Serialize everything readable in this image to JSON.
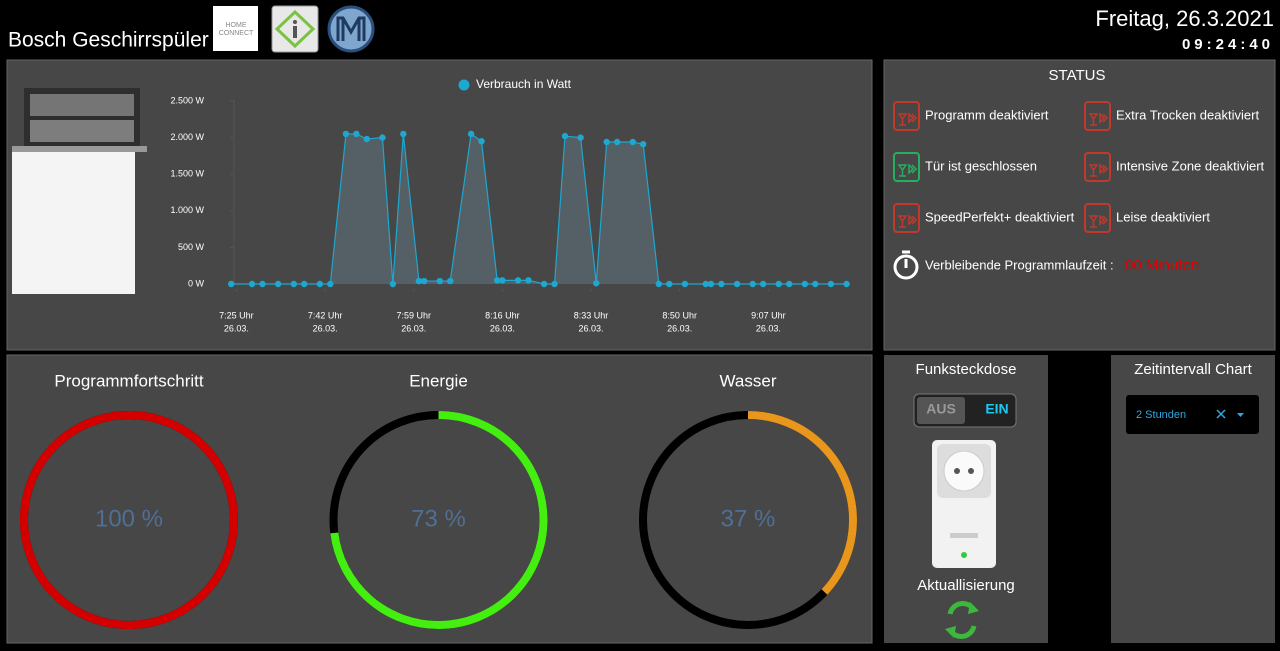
{
  "header": {
    "title": "Bosch Geschirrspüler",
    "logo_text": [
      "HOME",
      "CONNECT"
    ],
    "date": "Freitag, 26.3.2021",
    "time": "09:24:40"
  },
  "chart_data": {
    "type": "line",
    "series": [
      {
        "name": "Verbrauch in Watt",
        "color": "#1ea7cf",
        "x": [
          "07:24",
          "07:28",
          "07:30",
          "07:33",
          "07:36",
          "07:38",
          "07:41",
          "07:43",
          "07:46",
          "07:48",
          "07:50",
          "07:53",
          "07:55",
          "07:57",
          "08:00",
          "08:01",
          "08:04",
          "08:06",
          "08:10",
          "08:12",
          "08:15",
          "08:16",
          "08:19",
          "08:21",
          "08:24",
          "08:26",
          "08:28",
          "08:31",
          "08:34",
          "08:36",
          "08:38",
          "08:41",
          "08:43",
          "08:46",
          "08:48",
          "08:51",
          "08:55",
          "08:56",
          "08:58",
          "09:01",
          "09:04",
          "09:06",
          "09:09",
          "09:11",
          "09:14",
          "09:16",
          "09:19",
          "09:22"
        ],
        "values": [
          0,
          0,
          0,
          0,
          0,
          0,
          0,
          0,
          2050,
          2050,
          1980,
          2000,
          0,
          2050,
          40,
          40,
          40,
          40,
          2050,
          1950,
          50,
          50,
          50,
          50,
          0,
          0,
          2020,
          2000,
          10,
          1940,
          1940,
          1940,
          1910,
          0,
          0,
          0,
          0,
          0,
          0,
          0,
          0,
          0,
          0,
          0,
          0,
          0,
          0,
          0
        ]
      }
    ],
    "xlim": [
      "07:23",
      "09:24"
    ],
    "xticks": [
      {
        "value": "07:25",
        "label": [
          "7:25 Uhr",
          "26.03."
        ]
      },
      {
        "value": "07:42",
        "label": [
          "7:42 Uhr",
          "26.03."
        ]
      },
      {
        "value": "07:59",
        "label": [
          "7:59 Uhr",
          "26.03."
        ]
      },
      {
        "value": "08:16",
        "label": [
          "8:16 Uhr",
          "26.03."
        ]
      },
      {
        "value": "08:33",
        "label": [
          "8:33 Uhr",
          "26.03."
        ]
      },
      {
        "value": "08:50",
        "label": [
          "8:50 Uhr",
          "26.03."
        ]
      },
      {
        "value": "09:07",
        "label": [
          "9:07 Uhr",
          "26.03."
        ]
      }
    ],
    "ylim": [
      0,
      2500
    ],
    "yticks": [
      {
        "value": 0,
        "label": "0 W"
      },
      {
        "value": 500,
        "label": "500 W"
      },
      {
        "value": 1000,
        "label": "1.000 W"
      },
      {
        "value": 1500,
        "label": "1.500 W"
      },
      {
        "value": 2000,
        "label": "2.000 W"
      },
      {
        "value": 2500,
        "label": "2.500 W"
      }
    ],
    "legend": "top"
  },
  "status": {
    "title": "STATUS",
    "items": [
      {
        "label": "Programm deaktiviert",
        "color": "#c0392b"
      },
      {
        "label": "Extra Trocken deaktiviert",
        "color": "#c0392b"
      },
      {
        "label": "Tür ist geschlossen",
        "color": "#27ae60"
      },
      {
        "label": "Intensive Zone deaktiviert",
        "color": "#c0392b"
      },
      {
        "label": "SpeedPerfekt+ deaktiviert",
        "color": "#c0392b"
      },
      {
        "label": "Leise deaktiviert",
        "color": "#c0392b"
      }
    ],
    "remaining_label": "Verbleibende Programmlaufzeit :",
    "remaining_value": "00 Minuten"
  },
  "gauges": [
    {
      "title": "Programmfortschritt",
      "value": 100,
      "value_label": "100 %",
      "color": "#d40000"
    },
    {
      "title": "Energie",
      "value": 73,
      "value_label": "73 %",
      "color": "#44ee11"
    },
    {
      "title": "Wasser",
      "value": 37,
      "value_label": "37 %",
      "color": "#e8961c"
    }
  ],
  "socket": {
    "title": "Funksteckdose",
    "off": "AUS",
    "on": "EIN",
    "refresh_label": "Aktuallisierung"
  },
  "interval": {
    "title": "Zeitintervall Chart",
    "selected": "2 Stunden"
  }
}
